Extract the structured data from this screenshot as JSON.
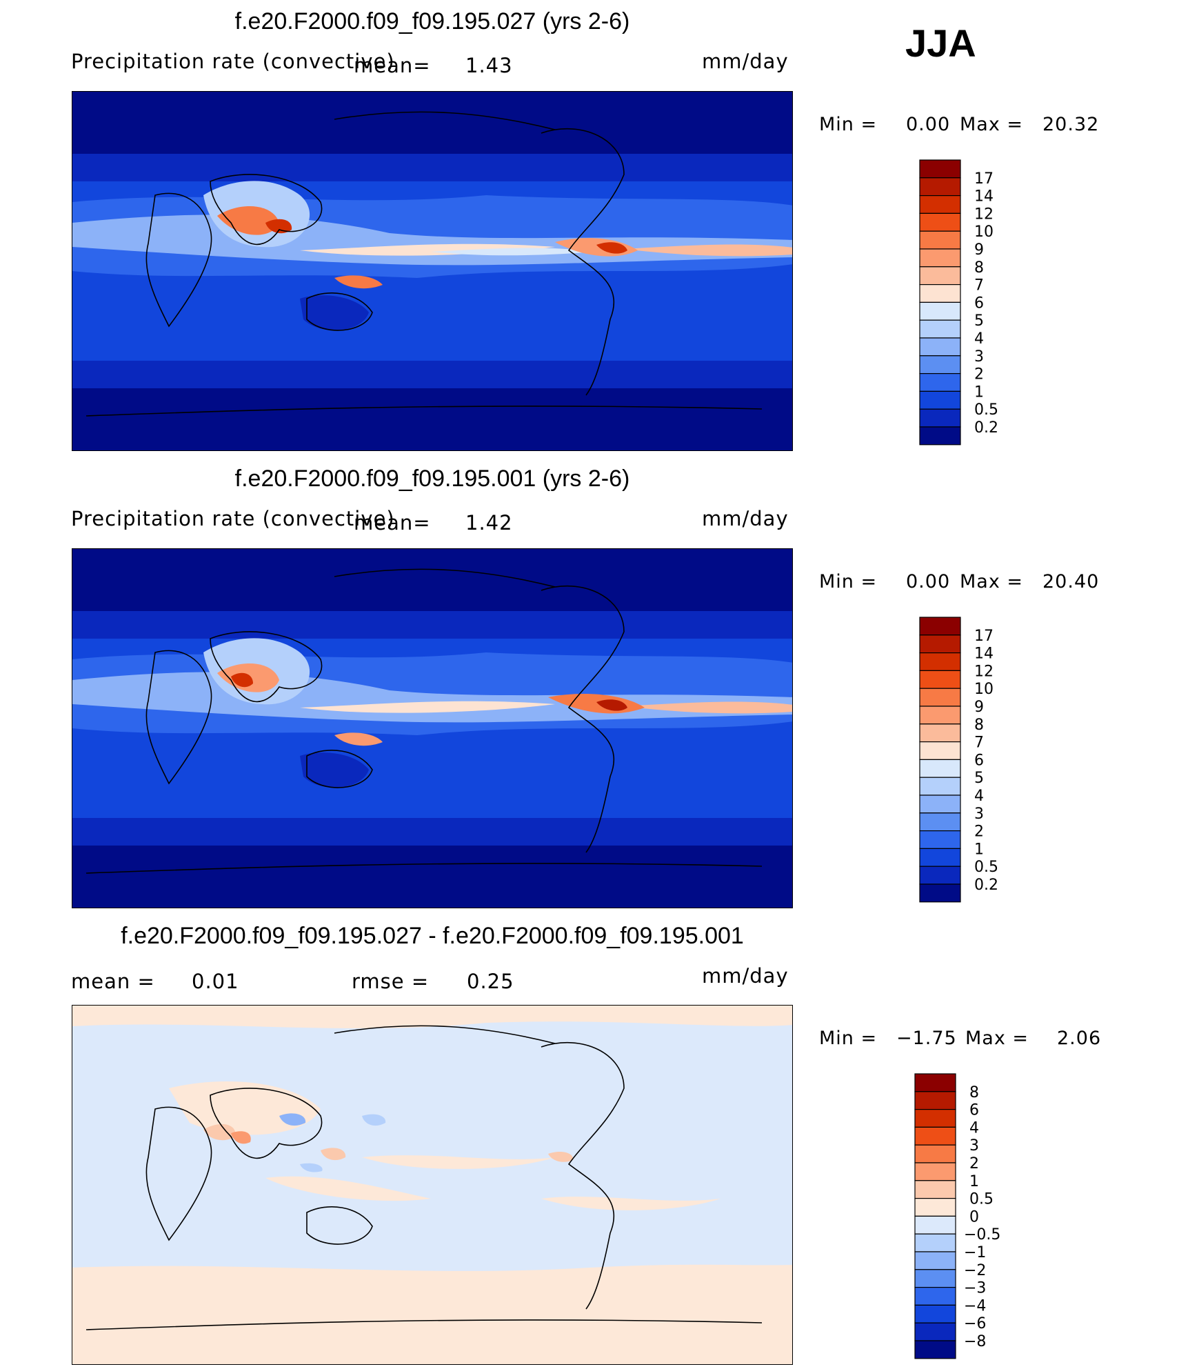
{
  "season": "JJA",
  "chart_data": [
    {
      "type": "heatmap",
      "title": "f.e20.F2000.f09_f09.195.027 (yrs 2-6)",
      "variable": "Precipitation rate (convective)",
      "mean_label": "mean=",
      "mean": "1.43",
      "units": "mm/day",
      "min_label": "Min =",
      "min": "0.00",
      "max_label": "Max =",
      "max": "20.32",
      "colorbar_levels": [
        "17",
        "14",
        "12",
        "10",
        "9",
        "8",
        "7",
        "6",
        "5",
        "4",
        "3",
        "2",
        "1",
        "0.5",
        "0.2"
      ],
      "colorbar_colors": [
        "#8b0000",
        "#b51a00",
        "#d32f00",
        "#ee4f16",
        "#f77a45",
        "#fb9a6f",
        "#fbbb9b",
        "#fde3d2",
        "#d8e8fb",
        "#b4d0fb",
        "#8cb2f8",
        "#5c8ff2",
        "#2e66ec",
        "#1246dc",
        "#0a28bd",
        "#000b87"
      ]
    },
    {
      "type": "heatmap",
      "title": "f.e20.F2000.f09_f09.195.001 (yrs 2-6)",
      "variable": "Precipitation rate (convective)",
      "mean_label": "mean=",
      "mean": "1.42",
      "units": "mm/day",
      "min_label": "Min =",
      "min": "0.00",
      "max_label": "Max =",
      "max": "20.40",
      "colorbar_levels": [
        "17",
        "14",
        "12",
        "10",
        "9",
        "8",
        "7",
        "6",
        "5",
        "4",
        "3",
        "2",
        "1",
        "0.5",
        "0.2"
      ],
      "colorbar_colors": [
        "#8b0000",
        "#b51a00",
        "#d32f00",
        "#ee4f16",
        "#f77a45",
        "#fb9a6f",
        "#fbbb9b",
        "#fde3d2",
        "#d8e8fb",
        "#b4d0fb",
        "#8cb2f8",
        "#5c8ff2",
        "#2e66ec",
        "#1246dc",
        "#0a28bd",
        "#000b87"
      ]
    },
    {
      "type": "heatmap",
      "title": "f.e20.F2000.f09_f09.195.027 - f.e20.F2000.f09_f09.195.001",
      "mean_label": "mean =",
      "mean": "0.01",
      "rmse_label": "rmse =",
      "rmse": "0.25",
      "units": "mm/day",
      "min_label": "Min =",
      "min": "−1.75",
      "max_label": "Max =",
      "max": "2.06",
      "colorbar_levels": [
        "8",
        "6",
        "4",
        "3",
        "2",
        "1",
        "0.5",
        "0",
        "−0.5",
        "−1",
        "−2",
        "−3",
        "−4",
        "−6",
        "−8"
      ],
      "colorbar_colors": [
        "#8b0000",
        "#b51a00",
        "#d32f00",
        "#ee4f16",
        "#f77a45",
        "#fb9a6f",
        "#fbc9ad",
        "#fde8d8",
        "#dce9fb",
        "#b4d0fb",
        "#8cb2f8",
        "#5c8ff2",
        "#2e66ec",
        "#1246dc",
        "#0a28bd",
        "#000b87"
      ]
    }
  ]
}
